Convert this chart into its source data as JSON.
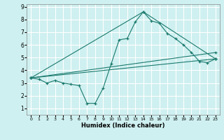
{
  "xlabel": "Humidex (Indice chaleur)",
  "ylabel": "",
  "bg_color": "#cff0f0",
  "line_color": "#1a7a6e",
  "grid_color": "#ffffff",
  "xlim": [
    -0.5,
    23.5
  ],
  "ylim": [
    0.5,
    9.2
  ],
  "xticks": [
    0,
    1,
    2,
    3,
    4,
    5,
    6,
    7,
    8,
    9,
    10,
    11,
    12,
    13,
    14,
    15,
    16,
    17,
    18,
    19,
    20,
    21,
    22,
    23
  ],
  "yticks": [
    1,
    2,
    3,
    4,
    5,
    6,
    7,
    8,
    9
  ],
  "series": [
    {
      "x": [
        0,
        1,
        2,
        3,
        4,
        5,
        6,
        7,
        8,
        9,
        10,
        11,
        12,
        13,
        14,
        15,
        16,
        17,
        18,
        19,
        20,
        21,
        22,
        23
      ],
      "y": [
        3.4,
        3.3,
        3.0,
        3.2,
        3.0,
        2.9,
        2.8,
        1.4,
        1.4,
        2.6,
        4.5,
        6.4,
        6.5,
        7.8,
        8.6,
        7.9,
        7.7,
        6.9,
        6.5,
        6.0,
        5.4,
        4.7,
        4.6,
        4.9
      ]
    },
    {
      "x": [
        0,
        23
      ],
      "y": [
        3.4,
        4.9
      ]
    },
    {
      "x": [
        0,
        14,
        23
      ],
      "y": [
        3.4,
        8.6,
        4.9
      ]
    },
    {
      "x": [
        0,
        23
      ],
      "y": [
        3.4,
        5.4
      ]
    }
  ]
}
